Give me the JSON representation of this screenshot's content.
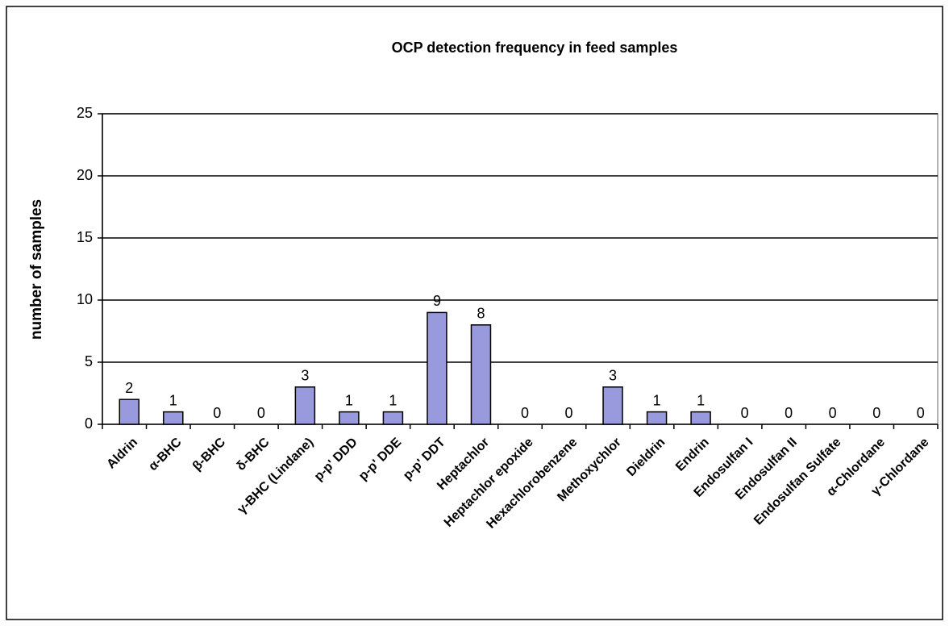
{
  "chart_data": {
    "type": "bar",
    "title": "OCP detection frequency in feed samples",
    "y_label": "number of samples",
    "categories": [
      "Aldrin",
      "α-BHC",
      "β-BHC",
      "δ-BHC",
      "γ-BHC (Lindane)",
      "p-p' DDD",
      "p-p' DDE",
      "p-p' DDT",
      "Heptachlor",
      "Heptachlor epoxide",
      "Hexachlorobenzene",
      "Methoxychlor",
      "Dieldrin",
      "Endrin",
      "Endosulfan I",
      "Endosulfan II",
      "Endosulfan Sulfate",
      "α-Chlordane",
      "γ-Chlordane"
    ],
    "values": [
      2,
      1,
      0,
      0,
      3,
      1,
      1,
      9,
      8,
      0,
      0,
      3,
      1,
      1,
      0,
      0,
      0,
      0,
      0
    ],
    "color": "#9999dd",
    "ylim": [
      0,
      25
    ],
    "yticks": [
      0,
      5,
      10,
      15,
      20,
      25
    ],
    "grid": true
  }
}
